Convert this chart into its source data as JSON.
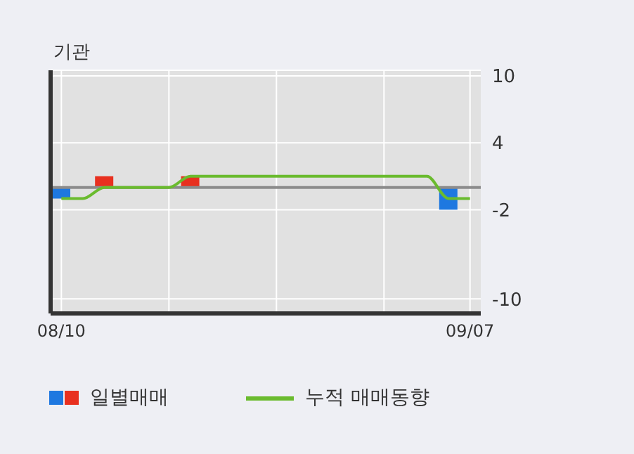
{
  "chart_data": {
    "type": "bar",
    "title": "기관",
    "categories": [
      "08/10",
      null,
      null,
      null,
      null,
      null,
      null,
      null,
      null,
      null,
      null,
      null,
      null,
      null,
      null,
      null,
      null,
      null,
      null,
      "09/07"
    ],
    "series": [
      {
        "name": "일별매매",
        "colors": [
          "#1e78e0",
          "#e8301f",
          "#e8301f",
          "#e8301f",
          "#e8301f",
          "#e8301f",
          "#e8301f",
          "#e8301f",
          "#e8301f",
          "#e8301f",
          "#e8301f",
          "#e8301f",
          "#e8301f",
          "#e8301f",
          "#e8301f",
          "#e8301f",
          "#e8301f",
          "#e8301f",
          "#1e78e0",
          "#e8301f"
        ],
        "values": [
          -1,
          0,
          1,
          0,
          0,
          0,
          1,
          0,
          0,
          0,
          0,
          0,
          0,
          0,
          0,
          0,
          0,
          0,
          -2,
          0
        ]
      },
      {
        "name": "누적 매매동향",
        "type": "line",
        "color": "#6abb2e",
        "values": [
          -1,
          -1,
          0,
          0,
          0,
          0,
          1,
          1,
          1,
          1,
          1,
          1,
          1,
          1,
          1,
          1,
          1,
          1,
          -1,
          -1
        ]
      }
    ],
    "ylim": [
      -11.3,
      10.5
    ],
    "yticks": [
      10,
      4,
      -2,
      -10
    ],
    "grid": true,
    "legend": "bottom",
    "ref_lines": [
      {
        "axis": "y",
        "value": 0,
        "color": "#8c8c8c"
      }
    ]
  }
}
